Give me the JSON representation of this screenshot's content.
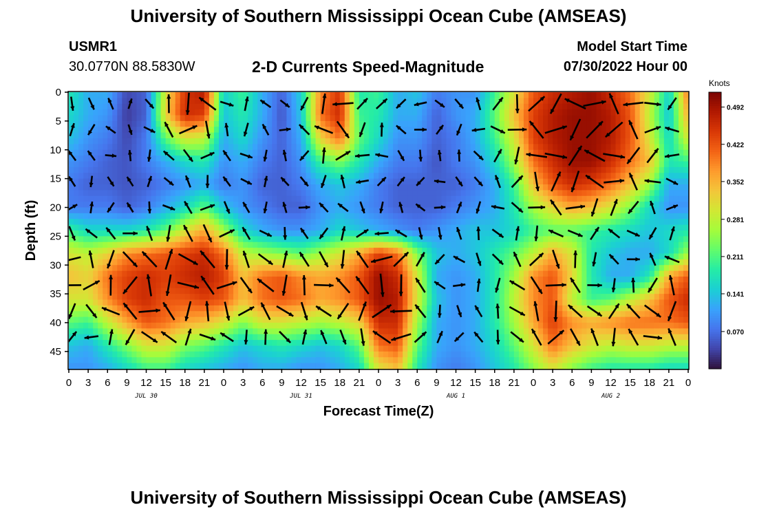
{
  "header": {
    "title": "University of Southern Mississippi Ocean Cube (AMSEAS)",
    "station_id": "USMR1",
    "station_coords": "30.0770N  88.5830W",
    "plot_title": "2-D Currents Speed-Magnitude",
    "model_start_label": "Model Start Time",
    "model_start_value": "07/30/2022 Hour 00"
  },
  "footer": {
    "title": "University of Southern Mississippi Ocean Cube (AMSEAS)"
  },
  "chart_data": {
    "type": "heatmap",
    "title": "2-D Currents Speed-Magnitude",
    "xlabel": "Forecast Time(Z)",
    "ylabel": "Depth (ft)",
    "x_ticks": [
      "0",
      "3",
      "6",
      "9",
      "12",
      "15",
      "18",
      "21",
      "0",
      "3",
      "6",
      "9",
      "12",
      "15",
      "18",
      "21",
      "0",
      "3",
      "6",
      "9",
      "12",
      "15",
      "18",
      "21",
      "0",
      "3",
      "6",
      "9",
      "12",
      "15",
      "18",
      "21",
      "0"
    ],
    "x_range_hours": [
      0,
      96
    ],
    "date_labels": [
      {
        "label": "JUL 30",
        "hour": 12
      },
      {
        "label": "JUL 31",
        "hour": 36
      },
      {
        "label": "AUG 1",
        "hour": 60
      },
      {
        "label": "AUG 2",
        "hour": 84
      }
    ],
    "y_ticks": [
      "0",
      "5",
      "10",
      "15",
      "20",
      "25",
      "30",
      "35",
      "40",
      "45"
    ],
    "y_range_ft": [
      0,
      48
    ],
    "colorbar": {
      "unit": "Knots",
      "tick_labels": [
        "0.492",
        "0.422",
        "0.352",
        "0.281",
        "0.211",
        "0.141",
        "0.070"
      ],
      "range": [
        0,
        0.52
      ]
    },
    "speed_grid": {
      "depths_ft": [
        0,
        4,
        8,
        12,
        16,
        20,
        24,
        28,
        32,
        36,
        40,
        44,
        48
      ],
      "hours_step": 3,
      "values_knots": [
        [
          0.18,
          0.12,
          0.12,
          0.04,
          0.06,
          0.3,
          0.45,
          0.48,
          0.15,
          0.2,
          0.12,
          0.06,
          0.15,
          0.38,
          0.45,
          0.18,
          0.2,
          0.12,
          0.14,
          0.08,
          0.1,
          0.1,
          0.2,
          0.3,
          0.42,
          0.46,
          0.48,
          0.5,
          0.46,
          0.4,
          0.3,
          0.15,
          0.4
        ],
        [
          0.16,
          0.12,
          0.1,
          0.03,
          0.06,
          0.32,
          0.46,
          0.44,
          0.14,
          0.18,
          0.12,
          0.05,
          0.14,
          0.4,
          0.46,
          0.2,
          0.18,
          0.12,
          0.12,
          0.06,
          0.1,
          0.12,
          0.22,
          0.34,
          0.44,
          0.48,
          0.5,
          0.5,
          0.48,
          0.42,
          0.28,
          0.14,
          0.36
        ],
        [
          0.14,
          0.1,
          0.08,
          0.04,
          0.08,
          0.22,
          0.3,
          0.28,
          0.12,
          0.16,
          0.1,
          0.06,
          0.12,
          0.32,
          0.4,
          0.22,
          0.16,
          0.1,
          0.1,
          0.06,
          0.08,
          0.12,
          0.2,
          0.3,
          0.44,
          0.48,
          0.5,
          0.5,
          0.48,
          0.42,
          0.3,
          0.16,
          0.3
        ],
        [
          0.1,
          0.08,
          0.06,
          0.05,
          0.08,
          0.12,
          0.16,
          0.18,
          0.1,
          0.12,
          0.08,
          0.06,
          0.1,
          0.2,
          0.24,
          0.18,
          0.12,
          0.08,
          0.08,
          0.05,
          0.08,
          0.1,
          0.16,
          0.26,
          0.4,
          0.46,
          0.5,
          0.5,
          0.46,
          0.4,
          0.34,
          0.18,
          0.2
        ],
        [
          0.08,
          0.06,
          0.06,
          0.05,
          0.06,
          0.08,
          0.1,
          0.12,
          0.08,
          0.1,
          0.06,
          0.06,
          0.08,
          0.12,
          0.14,
          0.12,
          0.08,
          0.06,
          0.06,
          0.06,
          0.06,
          0.08,
          0.12,
          0.2,
          0.34,
          0.42,
          0.46,
          0.44,
          0.4,
          0.34,
          0.26,
          0.12,
          0.12
        ],
        [
          0.08,
          0.08,
          0.08,
          0.06,
          0.08,
          0.12,
          0.16,
          0.22,
          0.14,
          0.1,
          0.08,
          0.06,
          0.06,
          0.1,
          0.12,
          0.1,
          0.08,
          0.06,
          0.06,
          0.06,
          0.08,
          0.1,
          0.12,
          0.18,
          0.26,
          0.32,
          0.36,
          0.34,
          0.3,
          0.24,
          0.16,
          0.1,
          0.1
        ],
        [
          0.2,
          0.16,
          0.16,
          0.16,
          0.18,
          0.22,
          0.3,
          0.36,
          0.26,
          0.16,
          0.12,
          0.1,
          0.1,
          0.12,
          0.16,
          0.14,
          0.12,
          0.1,
          0.08,
          0.1,
          0.12,
          0.14,
          0.14,
          0.16,
          0.2,
          0.22,
          0.22,
          0.2,
          0.18,
          0.16,
          0.14,
          0.16,
          0.18
        ],
        [
          0.3,
          0.28,
          0.32,
          0.38,
          0.4,
          0.42,
          0.44,
          0.46,
          0.4,
          0.28,
          0.26,
          0.24,
          0.22,
          0.26,
          0.3,
          0.36,
          0.44,
          0.4,
          0.24,
          0.14,
          0.12,
          0.14,
          0.18,
          0.22,
          0.28,
          0.36,
          0.3,
          0.18,
          0.14,
          0.12,
          0.12,
          0.16,
          0.26
        ],
        [
          0.34,
          0.32,
          0.4,
          0.44,
          0.46,
          0.44,
          0.46,
          0.48,
          0.44,
          0.34,
          0.4,
          0.42,
          0.38,
          0.36,
          0.38,
          0.42,
          0.5,
          0.46,
          0.3,
          0.12,
          0.1,
          0.12,
          0.18,
          0.26,
          0.38,
          0.42,
          0.32,
          0.18,
          0.12,
          0.12,
          0.18,
          0.36,
          0.42
        ],
        [
          0.3,
          0.3,
          0.38,
          0.44,
          0.46,
          0.42,
          0.42,
          0.44,
          0.42,
          0.34,
          0.4,
          0.42,
          0.4,
          0.36,
          0.38,
          0.42,
          0.5,
          0.48,
          0.3,
          0.14,
          0.1,
          0.12,
          0.18,
          0.28,
          0.38,
          0.42,
          0.28,
          0.2,
          0.22,
          0.28,
          0.34,
          0.42,
          0.46
        ],
        [
          0.22,
          0.2,
          0.28,
          0.36,
          0.42,
          0.4,
          0.36,
          0.34,
          0.3,
          0.24,
          0.3,
          0.3,
          0.28,
          0.26,
          0.28,
          0.32,
          0.46,
          0.46,
          0.26,
          0.12,
          0.1,
          0.12,
          0.18,
          0.26,
          0.36,
          0.44,
          0.38,
          0.36,
          0.38,
          0.4,
          0.4,
          0.4,
          0.42
        ],
        [
          0.14,
          0.12,
          0.18,
          0.24,
          0.3,
          0.3,
          0.24,
          0.22,
          0.18,
          0.14,
          0.16,
          0.18,
          0.16,
          0.14,
          0.16,
          0.22,
          0.4,
          0.42,
          0.22,
          0.12,
          0.1,
          0.12,
          0.16,
          0.22,
          0.3,
          0.4,
          0.34,
          0.3,
          0.28,
          0.3,
          0.3,
          0.28,
          0.28
        ],
        [
          0.1,
          0.1,
          0.12,
          0.16,
          0.2,
          0.2,
          0.16,
          0.14,
          0.12,
          0.1,
          0.12,
          0.12,
          0.1,
          0.1,
          0.12,
          0.16,
          0.3,
          0.34,
          0.18,
          0.1,
          0.08,
          0.1,
          0.14,
          0.18,
          0.24,
          0.3,
          0.24,
          0.2,
          0.18,
          0.18,
          0.18,
          0.16,
          0.16
        ]
      ]
    }
  },
  "colors": {
    "colormap": [
      "#30123b",
      "#4145ab",
      "#4675ed",
      "#39a2fc",
      "#1bcfd4",
      "#24eca6",
      "#61fc6c",
      "#a4fc3b",
      "#d1e834",
      "#f3c63a",
      "#fe9b2d",
      "#f36315",
      "#d93806",
      "#b11901",
      "#7a0402"
    ],
    "arrow": "#000000"
  }
}
